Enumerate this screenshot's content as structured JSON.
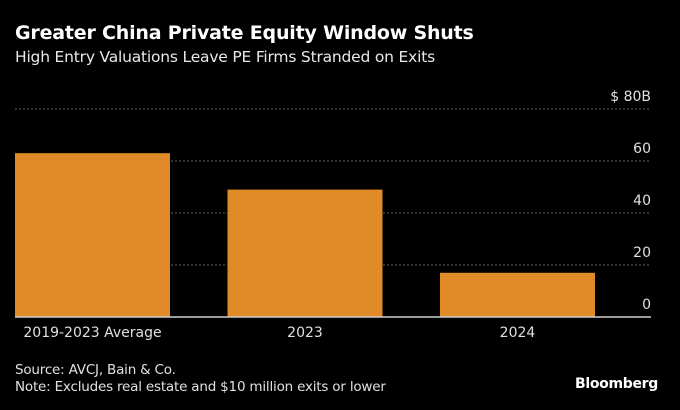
{
  "chart_data": {
    "type": "bar",
    "title": "Greater China Private Equity Window Shuts",
    "subtitle": "High Entry Valuations Leave PE Firms Stranded on Exits",
    "categories": [
      "2019-2023 Average",
      "2023",
      "2024"
    ],
    "values": [
      63,
      49,
      17
    ],
    "unit": "USD billions",
    "ylim": [
      0,
      80
    ],
    "yticks": [
      0,
      20,
      40,
      60,
      80
    ],
    "ytick_labels": [
      "0",
      "20",
      "40",
      "60",
      "$ 80B"
    ],
    "yaxis_position": "right",
    "grid": true,
    "bar_color": "#E08B27",
    "xlabel": "",
    "ylabel": ""
  },
  "footer": {
    "source": "Source: AVCJ, Bain & Co.",
    "note": "Note: Excludes real estate and $10 million exits or lower",
    "brand": "Bloomberg"
  }
}
